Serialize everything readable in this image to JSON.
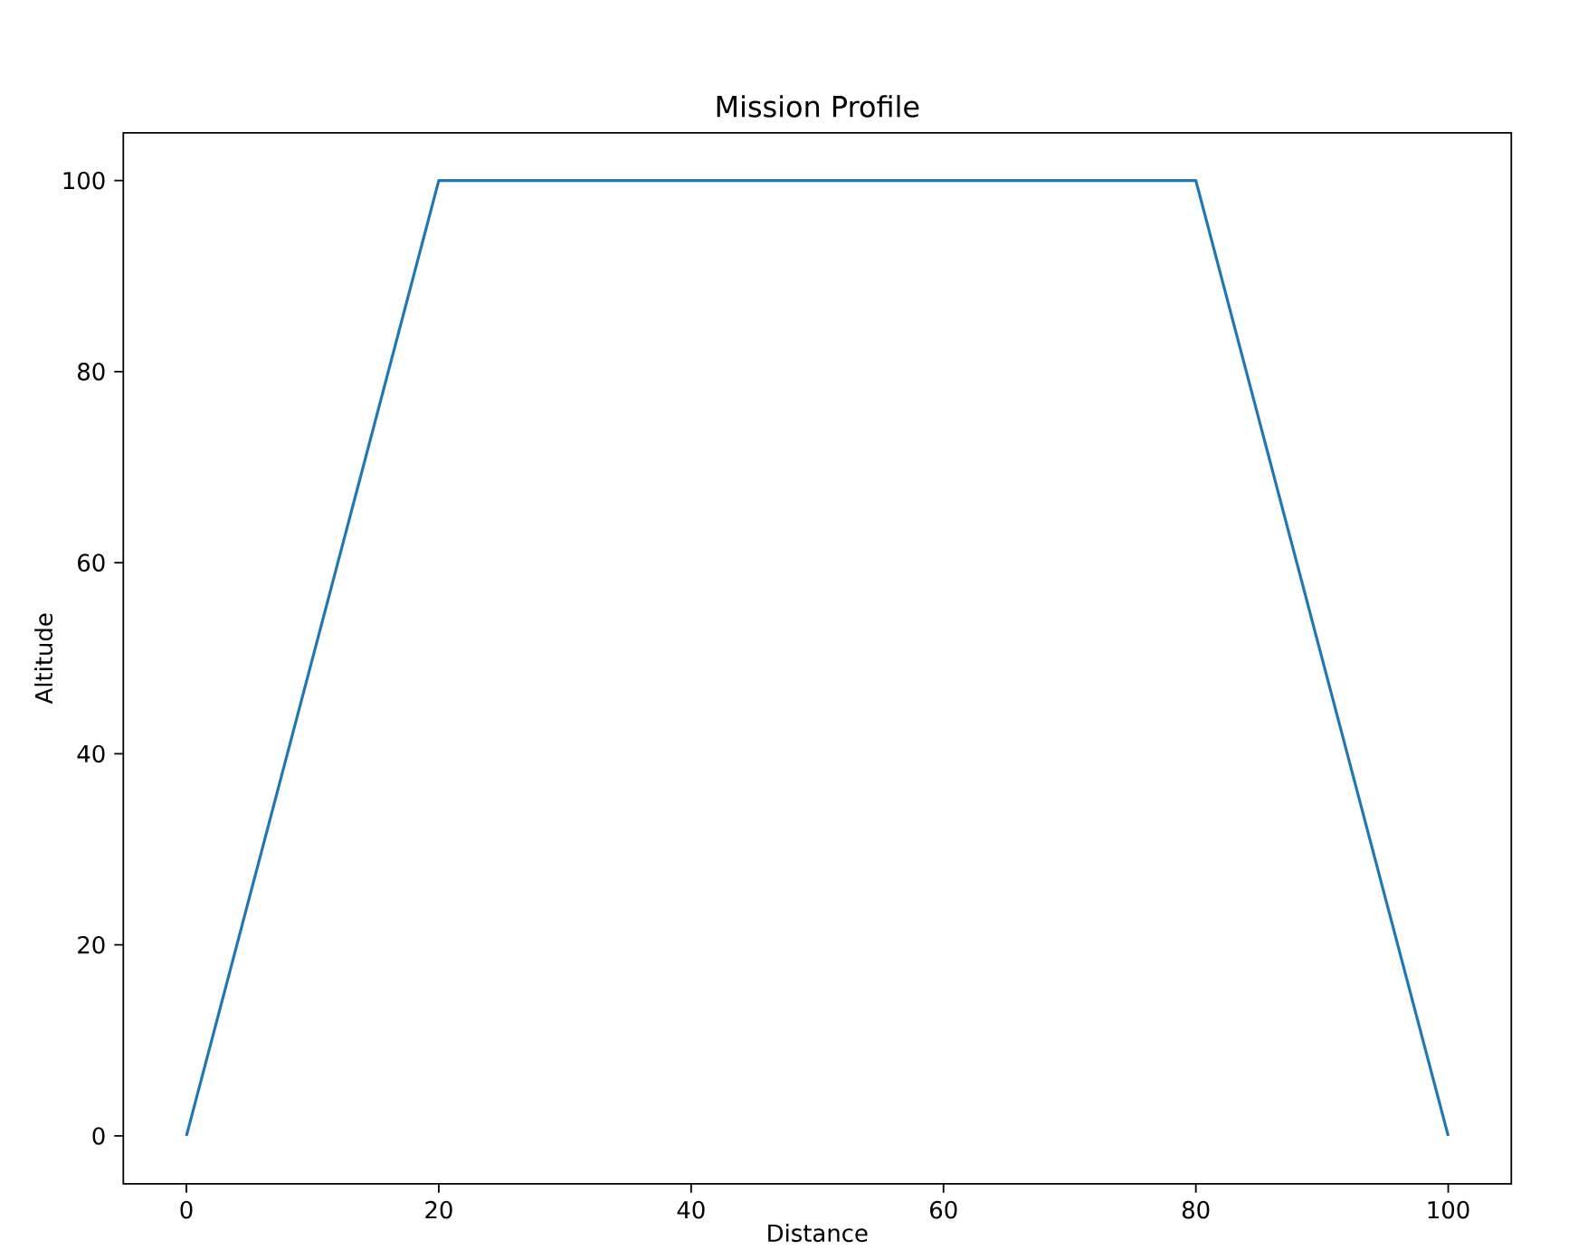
{
  "chart_data": {
    "type": "line",
    "title": "Mission Profile",
    "xlabel": "Distance",
    "ylabel": "Altitude",
    "x": [
      0,
      20,
      80,
      100
    ],
    "series": [
      {
        "color": "#1f77b4",
        "values": [
          0,
          100,
          100,
          0
        ]
      }
    ],
    "xlim": [
      -5,
      105
    ],
    "ylim": [
      -5,
      105
    ],
    "xticks": [
      0,
      20,
      40,
      60,
      80,
      100
    ],
    "yticks": [
      0,
      20,
      40,
      60,
      80,
      100
    ],
    "grid": false
  }
}
